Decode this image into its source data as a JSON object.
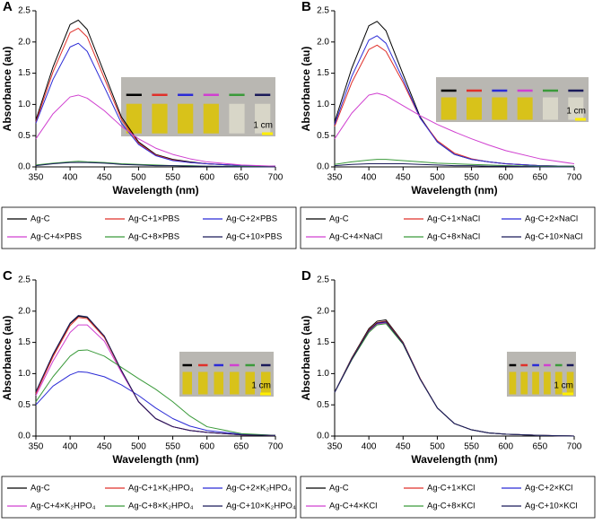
{
  "chart_data": [
    {
      "type": "line",
      "panel_label": "A",
      "x_label": "Wavelength (nm)",
      "y_label": "Absorbance (au)",
      "inset_label": "1 cm",
      "x": [
        350,
        375,
        400,
        412,
        425,
        450,
        475,
        500,
        525,
        550,
        575,
        600,
        650,
        700
      ],
      "xlim": [
        350,
        700
      ],
      "xticks": [
        350,
        400,
        450,
        500,
        550,
        600,
        650,
        700
      ],
      "ylim": [
        0,
        2.5
      ],
      "yticks": [
        {
          "value": 0,
          "label": "0.0"
        },
        0.5,
        {
          "value": 1,
          "label": "1.0"
        },
        1.5,
        {
          "value": 2,
          "label": "2.0"
        },
        2.5
      ],
      "series": [
        {
          "name": "Ag-C",
          "color": "#000000",
          "values": [
            0.75,
            1.6,
            2.28,
            2.35,
            2.2,
            1.5,
            0.8,
            0.4,
            0.2,
            0.12,
            0.08,
            0.05,
            0.02,
            0.01
          ]
        },
        {
          "name": "Ag-C+1×PBS",
          "color": "#e0302a",
          "values": [
            0.72,
            1.52,
            2.15,
            2.22,
            2.08,
            1.42,
            0.76,
            0.38,
            0.19,
            0.11,
            0.07,
            0.05,
            0.02,
            0.01
          ]
        },
        {
          "name": "Ag-C+2×PBS",
          "color": "#2b2bd6",
          "values": [
            0.7,
            1.4,
            1.92,
            1.98,
            1.85,
            1.28,
            0.7,
            0.36,
            0.18,
            0.1,
            0.07,
            0.05,
            0.02,
            0.01
          ]
        },
        {
          "name": "Ag-C+4×PBS",
          "color": "#d040d0",
          "values": [
            0.45,
            0.85,
            1.12,
            1.15,
            1.1,
            0.9,
            0.65,
            0.45,
            0.3,
            0.2,
            0.13,
            0.08,
            0.03,
            0.01
          ]
        },
        {
          "name": "Ag-C+8×PBS",
          "color": "#3a9a3a",
          "values": [
            0.03,
            0.06,
            0.08,
            0.09,
            0.08,
            0.07,
            0.05,
            0.04,
            0.03,
            0.02,
            0.02,
            0.01,
            0.01,
            0
          ]
        },
        {
          "name": "Ag-C+10×PBS",
          "color": "#1a1a5a",
          "values": [
            0.02,
            0.05,
            0.07,
            0.07,
            0.07,
            0.06,
            0.04,
            0.03,
            0.02,
            0.02,
            0.01,
            0.01,
            0,
            0
          ]
        }
      ]
    },
    {
      "type": "line",
      "panel_label": "B",
      "x_label": "Wavelength (nm)",
      "y_label": "Absorbance (au)",
      "inset_label": "1 cm",
      "x": [
        350,
        375,
        400,
        412,
        425,
        450,
        475,
        500,
        525,
        550,
        575,
        600,
        650,
        700
      ],
      "xlim": [
        350,
        700
      ],
      "xticks": [
        350,
        400,
        450,
        500,
        550,
        600,
        650,
        700
      ],
      "ylim": [
        0,
        2.5
      ],
      "yticks": [
        {
          "value": 0,
          "label": "0.0"
        },
        0.5,
        {
          "value": 1,
          "label": "1.0"
        },
        1.5,
        {
          "value": 2,
          "label": "2.0"
        },
        2.5
      ],
      "series": [
        {
          "name": "Ag-C",
          "color": "#000000",
          "values": [
            0.72,
            1.58,
            2.26,
            2.33,
            2.18,
            1.48,
            0.8,
            0.4,
            0.2,
            0.12,
            0.08,
            0.05,
            0.02,
            0.01
          ]
        },
        {
          "name": "Ag-C+1×NaCl",
          "color": "#e0302a",
          "values": [
            0.65,
            1.35,
            1.88,
            1.95,
            1.85,
            1.35,
            0.78,
            0.42,
            0.22,
            0.13,
            0.08,
            0.05,
            0.02,
            0.01
          ]
        },
        {
          "name": "Ag-C+2×NaCl",
          "color": "#2b2bd6",
          "values": [
            0.68,
            1.45,
            2.03,
            2.1,
            1.98,
            1.4,
            0.78,
            0.4,
            0.2,
            0.12,
            0.08,
            0.05,
            0.02,
            0.01
          ]
        },
        {
          "name": "Ag-C+4×NaCl",
          "color": "#d040d0",
          "values": [
            0.45,
            0.86,
            1.15,
            1.18,
            1.14,
            0.98,
            0.82,
            0.68,
            0.56,
            0.45,
            0.35,
            0.26,
            0.13,
            0.05
          ]
        },
        {
          "name": "Ag-C+8×NaCl",
          "color": "#3a9a3a",
          "values": [
            0.04,
            0.08,
            0.11,
            0.12,
            0.12,
            0.1,
            0.08,
            0.06,
            0.05,
            0.04,
            0.03,
            0.02,
            0.01,
            0.01
          ]
        },
        {
          "name": "Ag-C+10×NaCl",
          "color": "#1a1a5a",
          "values": [
            0.02,
            0.04,
            0.05,
            0.05,
            0.05,
            0.05,
            0.04,
            0.03,
            0.02,
            0.02,
            0.01,
            0.01,
            0,
            0
          ]
        }
      ]
    },
    {
      "type": "line",
      "panel_label": "C",
      "x_label": "Wavelength (nm)",
      "y_label": "Absorbance (au)",
      "inset_label": "1 cm",
      "x": [
        350,
        375,
        400,
        412,
        425,
        450,
        475,
        500,
        525,
        550,
        575,
        600,
        650,
        700
      ],
      "xlim": [
        350,
        700
      ],
      "xticks": [
        350,
        400,
        450,
        500,
        550,
        600,
        650,
        700
      ],
      "ylim": [
        0,
        2.5
      ],
      "yticks": [
        {
          "value": 0,
          "label": "0.0"
        },
        0.5,
        {
          "value": 1,
          "label": "1.0"
        },
        1.5,
        {
          "value": 2,
          "label": "2.0"
        },
        2.5
      ],
      "series": [
        {
          "name": "Ag-C",
          "color": "#000000",
          "values": [
            0.7,
            1.3,
            1.8,
            1.92,
            1.9,
            1.6,
            1.05,
            0.55,
            0.28,
            0.15,
            0.09,
            0.06,
            0.02,
            0.01
          ]
        },
        {
          "name": "Ag-C+1×K₂HPO₄",
          "color": "#e0302a",
          "values": [
            0.68,
            1.27,
            1.77,
            1.9,
            1.88,
            1.58,
            1.04,
            0.55,
            0.28,
            0.15,
            0.09,
            0.06,
            0.02,
            0.01
          ]
        },
        {
          "name": "Ag-C+2×K₂HPO₄",
          "color": "#2b2bd6",
          "values": [
            0.5,
            0.8,
            0.98,
            1.03,
            1.02,
            0.95,
            0.82,
            0.65,
            0.45,
            0.28,
            0.16,
            0.09,
            0.03,
            0.01
          ]
        },
        {
          "name": "Ag-C+4×K₂HPO₄",
          "color": "#d040d0",
          "values": [
            0.65,
            1.2,
            1.66,
            1.78,
            1.78,
            1.52,
            1.02,
            0.55,
            0.28,
            0.15,
            0.09,
            0.06,
            0.02,
            0.01
          ]
        },
        {
          "name": "Ag-C+8×K₂HPO₄",
          "color": "#3a9a3a",
          "values": [
            0.55,
            0.95,
            1.28,
            1.37,
            1.38,
            1.28,
            1.1,
            0.92,
            0.75,
            0.55,
            0.32,
            0.15,
            0.04,
            0.01
          ]
        },
        {
          "name": "Ag-C+10×K₂HPO₄",
          "color": "#1a1a5a",
          "values": [
            0.71,
            1.31,
            1.81,
            1.93,
            1.91,
            1.6,
            1.05,
            0.55,
            0.28,
            0.15,
            0.09,
            0.06,
            0.02,
            0.01
          ]
        }
      ]
    },
    {
      "type": "line",
      "panel_label": "D",
      "x_label": "Wavelength (nm)",
      "y_label": "Absorbance (au)",
      "inset_label": "1 cm",
      "x": [
        350,
        375,
        400,
        412,
        425,
        450,
        475,
        500,
        525,
        550,
        575,
        600,
        650,
        700
      ],
      "xlim": [
        350,
        700
      ],
      "xticks": [
        350,
        400,
        450,
        500,
        550,
        600,
        650,
        700
      ],
      "ylim": [
        0,
        2.5
      ],
      "yticks": [
        {
          "value": 0,
          "label": "0.0"
        },
        0.5,
        {
          "value": 1,
          "label": "1.0"
        },
        1.5,
        {
          "value": 2,
          "label": "2.0"
        },
        2.5
      ],
      "series": [
        {
          "name": "Ag-C",
          "color": "#000000",
          "values": [
            0.7,
            1.25,
            1.72,
            1.84,
            1.86,
            1.5,
            0.92,
            0.45,
            0.2,
            0.1,
            0.05,
            0.03,
            0.01,
            0
          ]
        },
        {
          "name": "Ag-C+1×KCl",
          "color": "#e0302a",
          "values": [
            0.7,
            1.24,
            1.7,
            1.82,
            1.84,
            1.49,
            0.92,
            0.45,
            0.2,
            0.1,
            0.05,
            0.03,
            0.01,
            0
          ]
        },
        {
          "name": "Ag-C+2×KCl",
          "color": "#2b2bd6",
          "values": [
            0.7,
            1.23,
            1.68,
            1.8,
            1.82,
            1.48,
            0.91,
            0.45,
            0.2,
            0.1,
            0.05,
            0.03,
            0.01,
            0
          ]
        },
        {
          "name": "Ag-C+4×KCl",
          "color": "#d040d0",
          "values": [
            0.7,
            1.22,
            1.67,
            1.79,
            1.81,
            1.48,
            0.91,
            0.45,
            0.2,
            0.1,
            0.05,
            0.03,
            0.01,
            0
          ]
        },
        {
          "name": "Ag-C+8×KCl",
          "color": "#3a9a3a",
          "values": [
            0.7,
            1.22,
            1.66,
            1.78,
            1.8,
            1.47,
            0.91,
            0.45,
            0.2,
            0.1,
            0.05,
            0.03,
            0.01,
            0
          ]
        },
        {
          "name": "Ag-C+10×KCl",
          "color": "#1a1a5a",
          "values": [
            0.7,
            1.23,
            1.69,
            1.81,
            1.83,
            1.48,
            0.91,
            0.45,
            0.2,
            0.1,
            0.05,
            0.03,
            0.01,
            0
          ]
        }
      ]
    }
  ]
}
